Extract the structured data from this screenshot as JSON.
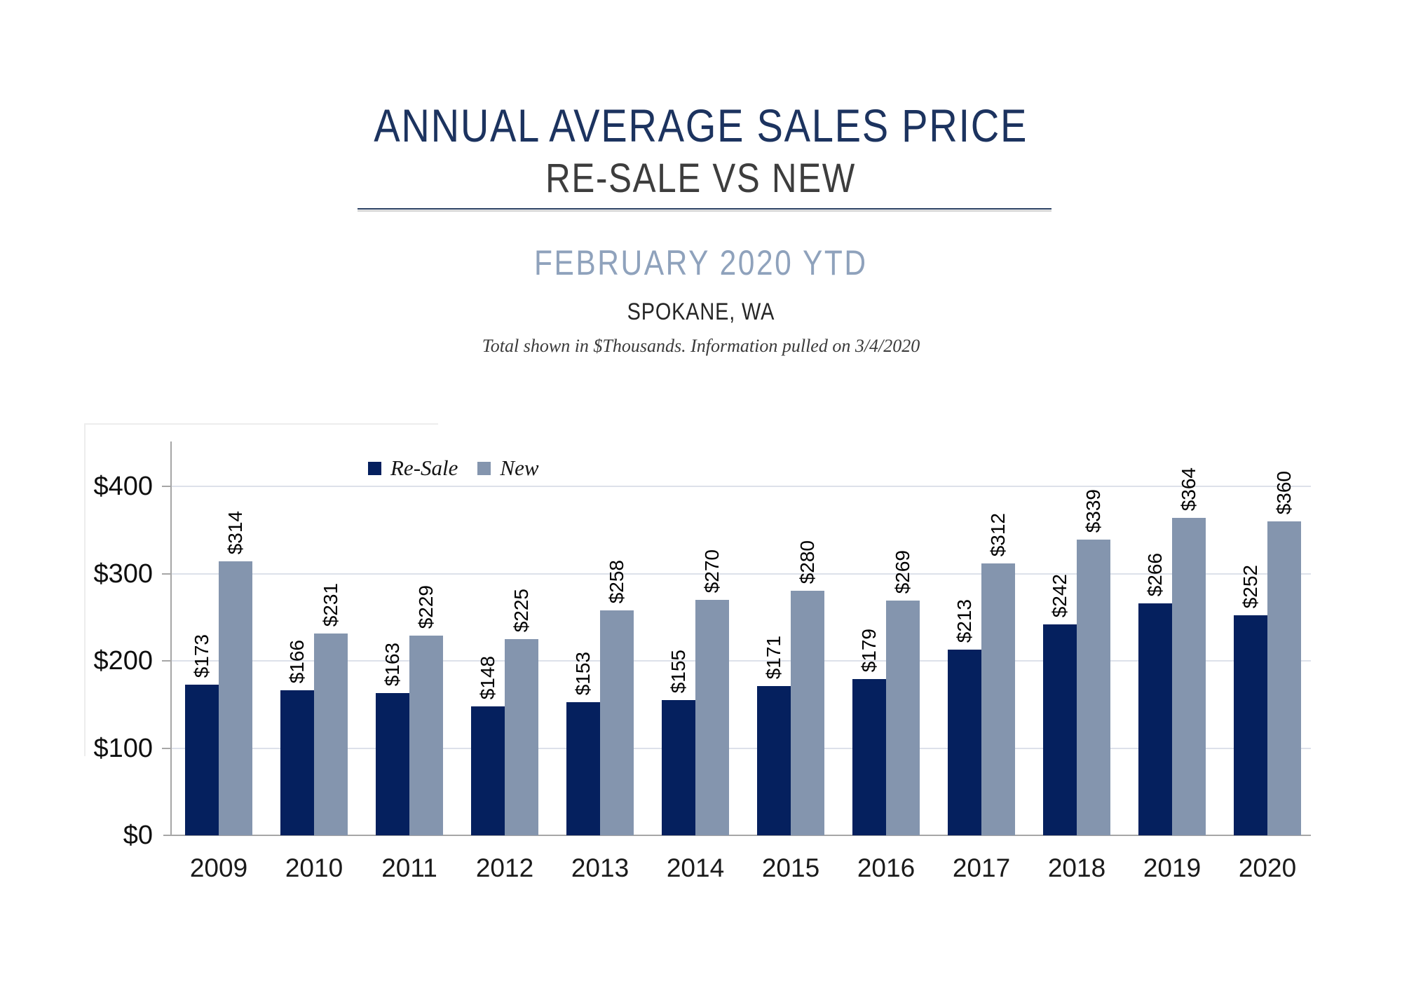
{
  "header": {
    "title": "ANNUAL AVERAGE SALES PRICE",
    "subtitle": "RE-SALE VS NEW",
    "period": "FEBRUARY 2020 YTD",
    "location": "SPOKANE, WA",
    "note": "Total shown in $Thousands. Information pulled on 3/4/2020"
  },
  "chart_data": {
    "type": "bar",
    "title": "Annual Average Sales Price, Re-Sale vs New, February 2020 YTD, Spokane WA",
    "categories": [
      "2009",
      "2010",
      "2011",
      "2012",
      "2013",
      "2014",
      "2015",
      "2016",
      "2017",
      "2018",
      "2019",
      "2020"
    ],
    "series": [
      {
        "name": "Re-Sale",
        "color": "#05205e",
        "values": [
          173,
          166,
          163,
          148,
          153,
          155,
          171,
          179,
          213,
          242,
          266,
          252
        ]
      },
      {
        "name": "New",
        "color": "#8495ae",
        "values": [
          314,
          231,
          229,
          225,
          258,
          270,
          280,
          269,
          312,
          339,
          364,
          360
        ]
      }
    ],
    "value_prefix": "$",
    "units": "$Thousands",
    "xlabel": "",
    "ylabel": "",
    "ylim": [
      0,
      400
    ],
    "ytick_step": 100,
    "ytick_labels": [
      "$0",
      "$100",
      "$200",
      "$300",
      "$400"
    ],
    "grid": true,
    "legend_position": "inside-top-left",
    "data_labels": "rotated-90-above-bars"
  },
  "colors": {
    "title": "#1c335f",
    "period": "#8fa2bc",
    "axis": "#a6a6a6",
    "gridline": "#dde1ea",
    "resale_bar": "#05205e",
    "new_bar": "#8495ae"
  }
}
